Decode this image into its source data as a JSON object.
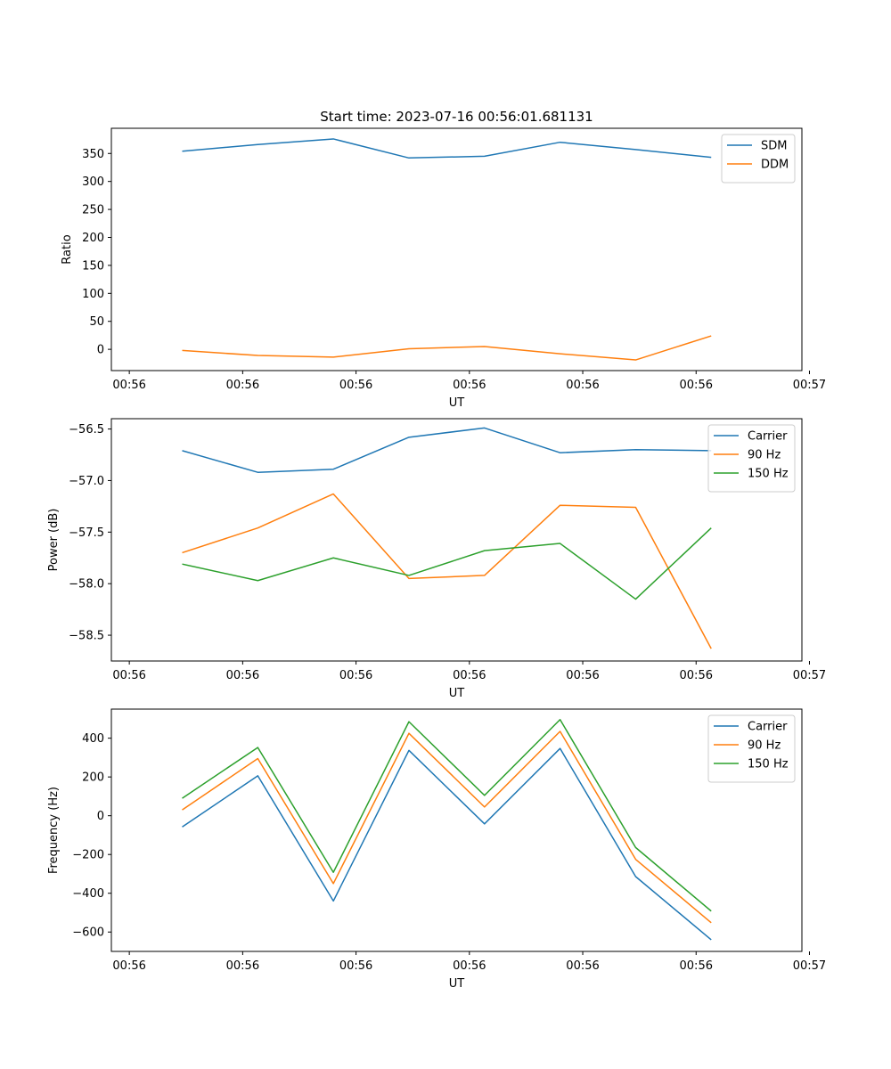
{
  "chart_data": [
    {
      "type": "line",
      "title": "Start time: 2023-07-16 00:56:01.681131",
      "xlabel": "UT",
      "ylabel": "Ratio",
      "xlim": [
        -0.9375,
        8.2
      ],
      "ylim": [
        -38,
        395
      ],
      "x_ticks": [
        {
          "x": -0.7,
          "label": "00:56"
        },
        {
          "x": 0.8,
          "label": "00:56"
        },
        {
          "x": 2.3,
          "label": "00:56"
        },
        {
          "x": 3.8,
          "label": "00:56"
        },
        {
          "x": 5.3,
          "label": "00:56"
        },
        {
          "x": 6.8,
          "label": "00:56"
        },
        {
          "x": 8.3,
          "label": "00:57"
        }
      ],
      "y_ticks": [
        {
          "value": 0,
          "label": "0"
        },
        {
          "value": 50,
          "label": "50"
        },
        {
          "value": 100,
          "label": "100"
        },
        {
          "value": 150,
          "label": "150"
        },
        {
          "value": 200,
          "label": "200"
        },
        {
          "value": 250,
          "label": "250"
        },
        {
          "value": 300,
          "label": "300"
        },
        {
          "value": 350,
          "label": "350"
        }
      ],
      "x": [
        0,
        1,
        2,
        3,
        4,
        5,
        6,
        7
      ],
      "series": [
        {
          "name": "SDM",
          "color": "#1f77b4",
          "values": [
            354,
            366,
            376,
            342,
            345,
            370,
            357,
            343
          ]
        },
        {
          "name": "DDM",
          "color": "#ff7f0e",
          "values": [
            -2,
            -11,
            -14,
            1,
            5,
            -8,
            -19,
            24
          ]
        }
      ],
      "legend": "top-right"
    },
    {
      "type": "line",
      "title": "",
      "xlabel": "UT",
      "ylabel": "Power (dB)",
      "xlim": [
        -0.9375,
        8.2
      ],
      "ylim": [
        -58.75,
        -56.4
      ],
      "x_ticks": [
        {
          "x": -0.7,
          "label": "00:56"
        },
        {
          "x": 0.8,
          "label": "00:56"
        },
        {
          "x": 2.3,
          "label": "00:56"
        },
        {
          "x": 3.8,
          "label": "00:56"
        },
        {
          "x": 5.3,
          "label": "00:56"
        },
        {
          "x": 6.8,
          "label": "00:56"
        },
        {
          "x": 8.3,
          "label": "00:57"
        }
      ],
      "y_ticks": [
        {
          "value": -56.5,
          "label": "−56.5"
        },
        {
          "value": -57.0,
          "label": "−57.0"
        },
        {
          "value": -57.5,
          "label": "−57.5"
        },
        {
          "value": -58.0,
          "label": "−58.0"
        },
        {
          "value": -58.5,
          "label": "−58.5"
        }
      ],
      "x": [
        0,
        1,
        2,
        3,
        4,
        5,
        6,
        7
      ],
      "series": [
        {
          "name": "Carrier",
          "color": "#1f77b4",
          "values": [
            -56.71,
            -56.92,
            -56.89,
            -56.58,
            -56.49,
            -56.73,
            -56.7,
            -56.71
          ]
        },
        {
          "name": "90 Hz",
          "color": "#ff7f0e",
          "values": [
            -57.7,
            -57.46,
            -57.13,
            -57.95,
            -57.92,
            -57.24,
            -57.26,
            -58.63
          ]
        },
        {
          "name": "150 Hz",
          "color": "#2ca02c",
          "values": [
            -57.81,
            -57.97,
            -57.75,
            -57.92,
            -57.68,
            -57.61,
            -58.15,
            -57.46
          ]
        }
      ],
      "legend": "top-right"
    },
    {
      "type": "line",
      "title": "",
      "xlabel": "UT",
      "ylabel": "Frequency (Hz)",
      "xlim": [
        -0.9375,
        8.2
      ],
      "ylim": [
        -700,
        550
      ],
      "x_ticks": [
        {
          "x": -0.7,
          "label": "00:56"
        },
        {
          "x": 0.8,
          "label": "00:56"
        },
        {
          "x": 2.3,
          "label": "00:56"
        },
        {
          "x": 3.8,
          "label": "00:56"
        },
        {
          "x": 5.3,
          "label": "00:56"
        },
        {
          "x": 6.8,
          "label": "00:56"
        },
        {
          "x": 8.3,
          "label": "00:57"
        }
      ],
      "y_ticks": [
        {
          "value": 400,
          "label": "400"
        },
        {
          "value": 200,
          "label": "200"
        },
        {
          "value": 0,
          "label": "0"
        },
        {
          "value": -200,
          "label": "−200"
        },
        {
          "value": -400,
          "label": "−400"
        },
        {
          "value": -600,
          "label": "−600"
        }
      ],
      "x": [
        0,
        1,
        2,
        3,
        4,
        5,
        6,
        7
      ],
      "series": [
        {
          "name": "Carrier",
          "color": "#1f77b4",
          "values": [
            -58,
            206,
            -440,
            337,
            -42,
            347,
            -314,
            -640
          ]
        },
        {
          "name": "90 Hz",
          "color": "#ff7f0e",
          "values": [
            30,
            295,
            -350,
            425,
            45,
            435,
            -225,
            -552
          ]
        },
        {
          "name": "150 Hz",
          "color": "#2ca02c",
          "values": [
            90,
            352,
            -292,
            485,
            105,
            496,
            -164,
            -492
          ]
        }
      ],
      "legend": "top-right"
    }
  ]
}
